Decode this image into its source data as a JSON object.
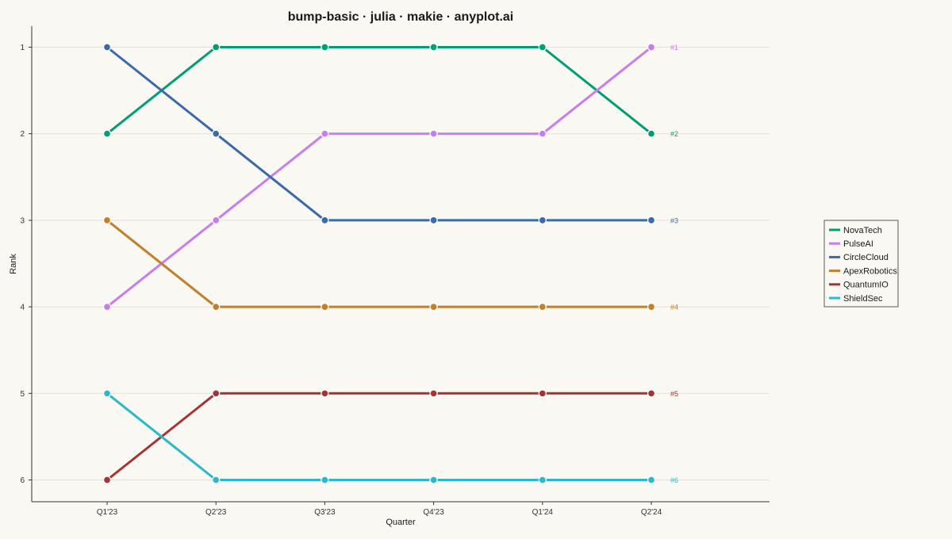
{
  "chart_data": {
    "type": "line",
    "subtype": "bump",
    "title": "bump-basic · julia · makie · anyplot.ai",
    "xlabel": "Quarter",
    "ylabel": "Rank",
    "categories": [
      "Q1'23",
      "Q2'23",
      "Q3'23",
      "Q4'23",
      "Q1'24",
      "Q2'24"
    ],
    "yticks": [
      "1",
      "2",
      "3",
      "4",
      "5",
      "6"
    ],
    "ylim": [
      1,
      6
    ],
    "y_inverted": true,
    "grid": "horizontal",
    "legend_position": "right",
    "series": [
      {
        "name": "NovaTech",
        "color": "#009E73",
        "values": [
          2,
          1,
          1,
          1,
          1,
          2
        ],
        "end_label": "#2"
      },
      {
        "name": "PulseAI",
        "color": "#C77CF0",
        "values": [
          4,
          3,
          2,
          2,
          2,
          1
        ],
        "end_label": "#1"
      },
      {
        "name": "CircleCloud",
        "color": "#3B6AA8",
        "values": [
          1,
          2,
          3,
          3,
          3,
          3
        ],
        "end_label": "#3"
      },
      {
        "name": "ApexRobotics",
        "color": "#C0802C",
        "values": [
          3,
          4,
          4,
          4,
          4,
          4
        ],
        "end_label": "#4"
      },
      {
        "name": "QuantumIO",
        "color": "#A83232",
        "values": [
          6,
          5,
          5,
          5,
          5,
          5
        ],
        "end_label": "#5"
      },
      {
        "name": "ShieldSec",
        "color": "#2BB8CC",
        "values": [
          5,
          6,
          6,
          6,
          6,
          6
        ],
        "end_label": "#6"
      }
    ]
  }
}
